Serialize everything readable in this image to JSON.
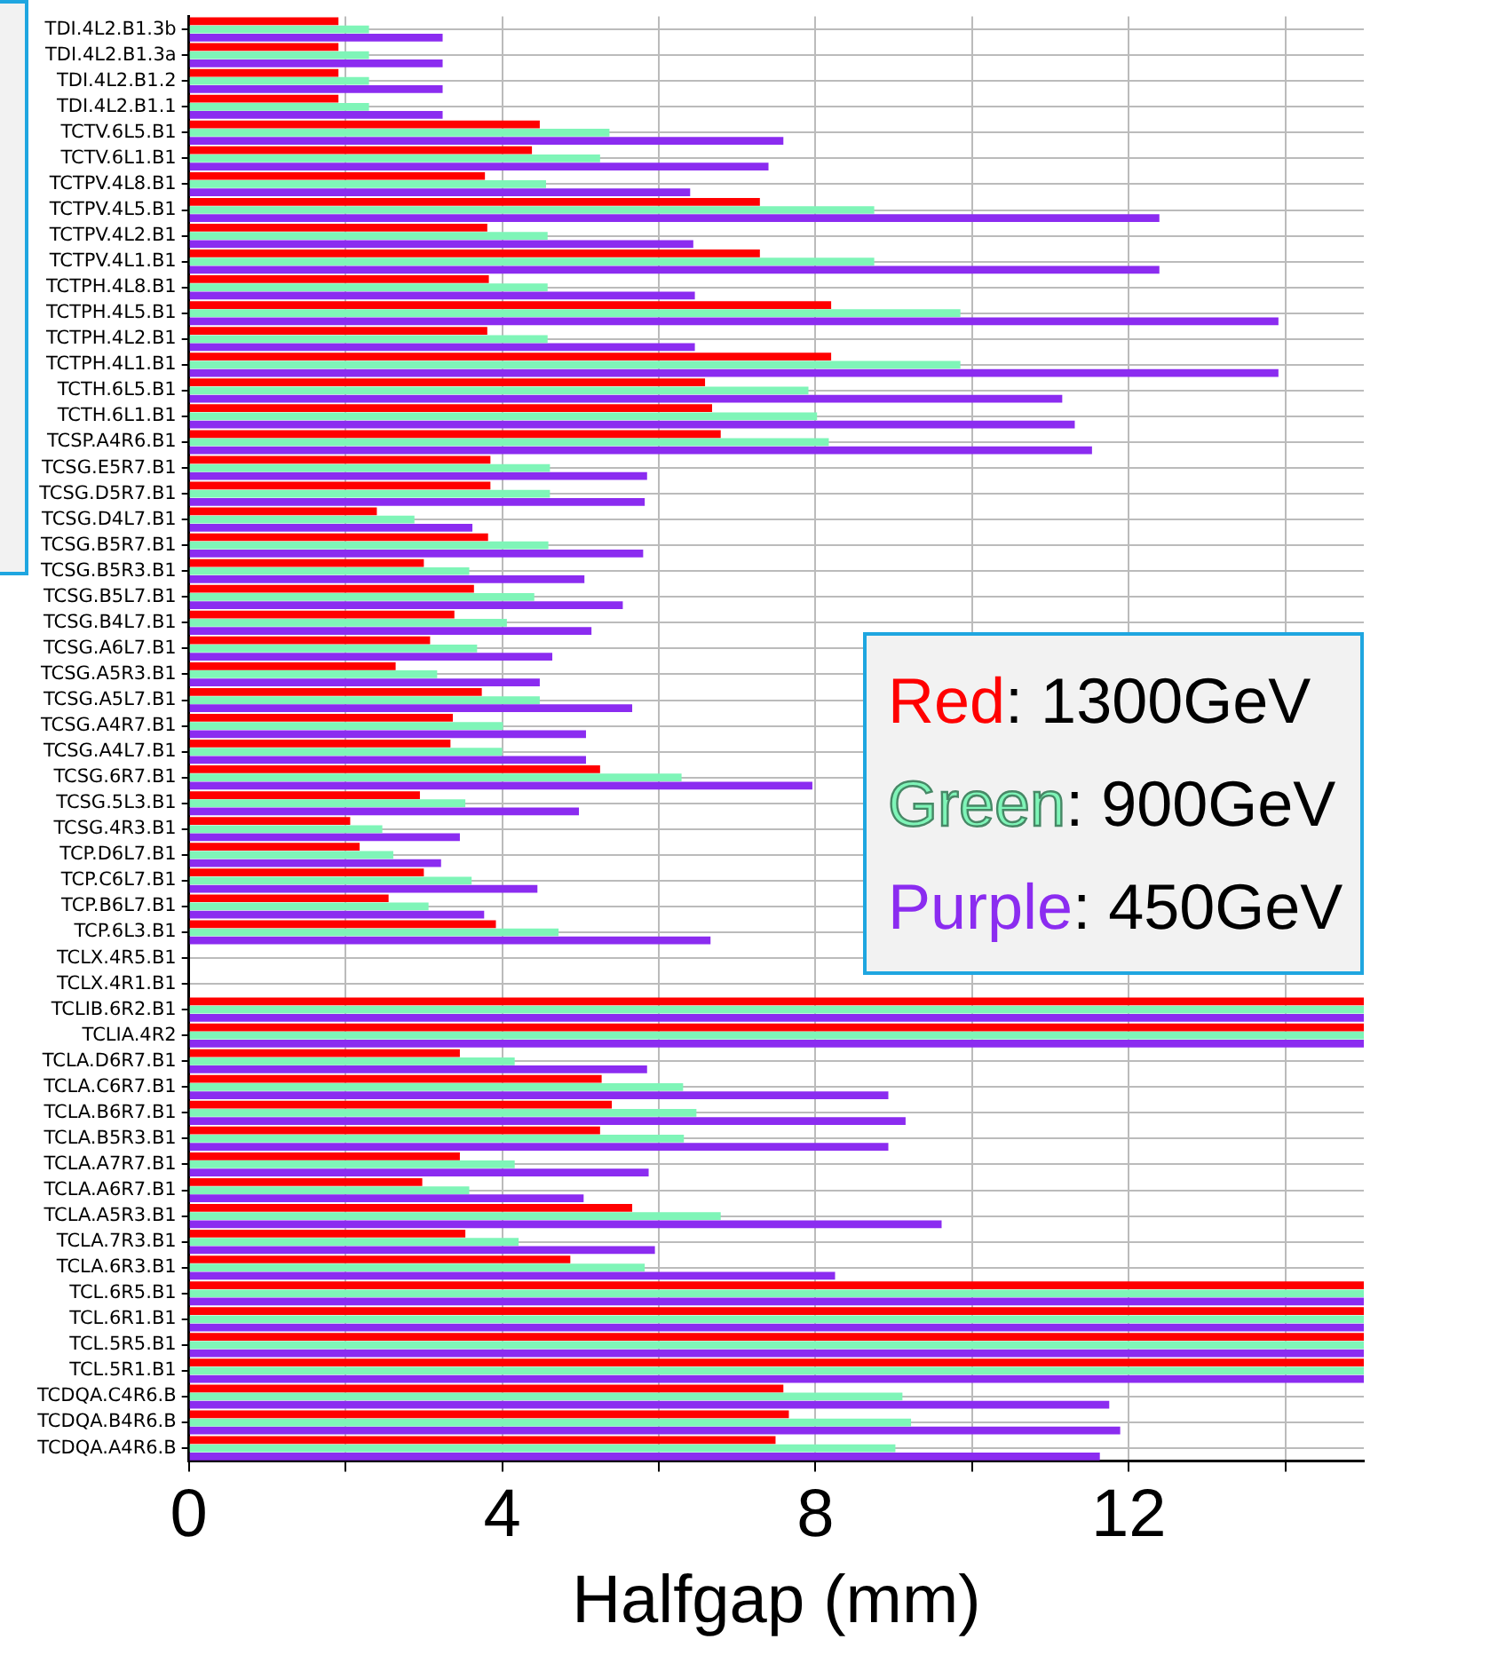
{
  "chart_data": {
    "type": "bar",
    "orientation": "horizontal",
    "xlabel": "Halfgap (mm)",
    "categories": [
      "TDI.4L2.B1.3b",
      "TDI.4L2.B1.3a",
      "TDI.4L2.B1.2",
      "TDI.4L2.B1.1",
      "TCTV.6L5.B1",
      "TCTV.6L1.B1",
      "TCTPV.4L8.B1",
      "TCTPV.4L5.B1",
      "TCTPV.4L2.B1",
      "TCTPV.4L1.B1",
      "TCTPH.4L8.B1",
      "TCTPH.4L5.B1",
      "TCTPH.4L2.B1",
      "TCTPH.4L1.B1",
      "TCTH.6L5.B1",
      "TCTH.6L1.B1",
      "TCSP.A4R6.B1",
      "TCSG.E5R7.B1",
      "TCSG.D5R7.B1",
      "TCSG.D4L7.B1",
      "TCSG.B5R7.B1",
      "TCSG.B5R3.B1",
      "TCSG.B5L7.B1",
      "TCSG.B4L7.B1",
      "TCSG.A6L7.B1",
      "TCSG.A5R3.B1",
      "TCSG.A5L7.B1",
      "TCSG.A4R7.B1",
      "TCSG.A4L7.B1",
      "TCSG.6R7.B1",
      "TCSG.5L3.B1",
      "TCSG.4R3.B1",
      "TCP.D6L7.B1",
      "TCP.C6L7.B1",
      "TCP.B6L7.B1",
      "TCP.6L3.B1",
      "TCLX.4R5.B1",
      "TCLX.4R1.B1",
      "TCLIB.6R2.B1",
      "TCLIA.4R2",
      "TCLA.D6R7.B1",
      "TCLA.C6R7.B1",
      "TCLA.B6R7.B1",
      "TCLA.B5R3.B1",
      "TCLA.A7R7.B1",
      "TCLA.A6R7.B1",
      "TCLA.A5R3.B1",
      "TCLA.7R3.B1",
      "TCLA.6R3.B1",
      "TCL.6R5.B1",
      "TCL.6R1.B1",
      "TCL.5R5.B1",
      "TCL.5R1.B1",
      "TCDQA.C4R6.B",
      "TCDQA.B4R6.B",
      "TCDQA.A4R6.B"
    ],
    "series": [
      {
        "name": "Red: 1300GeV",
        "color": "#ff0000",
        "values": [
          1.91,
          1.91,
          1.91,
          1.91,
          4.48,
          4.38,
          3.78,
          7.29,
          3.81,
          7.29,
          3.83,
          8.2,
          3.81,
          8.2,
          6.59,
          6.68,
          6.79,
          3.85,
          3.85,
          2.4,
          3.82,
          3.0,
          3.64,
          3.39,
          3.08,
          2.64,
          3.74,
          3.37,
          3.34,
          5.25,
          2.95,
          2.06,
          2.18,
          3.0,
          2.55,
          3.92,
          null,
          null,
          15,
          15,
          3.46,
          5.27,
          5.4,
          5.25,
          3.46,
          2.98,
          5.66,
          3.53,
          4.87,
          15,
          15,
          15,
          15,
          7.59,
          7.66,
          7.49
        ]
      },
      {
        "name": "Green: 900GeV",
        "color": "#7ff5b8",
        "values": [
          2.3,
          2.3,
          2.3,
          2.3,
          5.37,
          5.25,
          4.56,
          8.75,
          4.58,
          8.75,
          4.58,
          9.85,
          4.58,
          9.85,
          7.91,
          8.02,
          8.17,
          4.61,
          4.61,
          2.88,
          4.59,
          3.58,
          4.41,
          4.06,
          3.68,
          3.17,
          4.48,
          4.01,
          4.0,
          6.29,
          3.53,
          2.47,
          2.61,
          3.61,
          3.06,
          4.72,
          null,
          null,
          15,
          15,
          4.16,
          6.31,
          6.48,
          6.32,
          4.16,
          3.58,
          6.79,
          4.21,
          5.82,
          15,
          15,
          15,
          15,
          9.11,
          9.22,
          9.02
        ]
      },
      {
        "name": "Purple: 450GeV",
        "color": "#8b2cf0",
        "values": [
          3.24,
          3.24,
          3.24,
          3.24,
          7.59,
          7.4,
          6.4,
          12.39,
          6.44,
          12.39,
          6.46,
          13.91,
          6.46,
          13.91,
          11.15,
          11.31,
          11.53,
          5.85,
          5.82,
          3.62,
          5.8,
          5.05,
          5.54,
          5.14,
          4.64,
          4.48,
          5.66,
          5.07,
          5.07,
          7.96,
          4.98,
          3.46,
          3.22,
          4.45,
          3.77,
          6.66,
          null,
          null,
          15,
          15,
          5.85,
          8.93,
          9.15,
          8.93,
          5.87,
          5.04,
          9.61,
          5.95,
          8.25,
          15,
          15,
          15,
          15,
          11.75,
          11.89,
          11.63
        ]
      }
    ],
    "xlim": [
      0,
      15
    ],
    "xticks": [
      0,
      {
        "value": 2,
        "label": null
      },
      4,
      {
        "value": 6,
        "label": null
      },
      8,
      {
        "value": 10,
        "label": null
      },
      12,
      {
        "value": 14,
        "label": null
      }
    ],
    "grid": true,
    "legend": "right"
  }
}
